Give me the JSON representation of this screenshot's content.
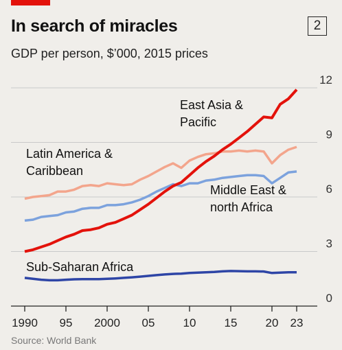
{
  "header": {
    "title": "In search of miracles",
    "chart_number": "2",
    "subtitle": "GDP per person, $’000, 2015 prices"
  },
  "footer": {
    "source": "Source: World Bank"
  },
  "colors": {
    "background": "#f0eeea",
    "accent": "#e3120b",
    "east_asia": "#e3120b",
    "latin_america": "#f3a58c",
    "middle_east": "#7ca2dd",
    "sub_saharan": "#2e45a6",
    "grid": "#c9c9c9",
    "baseline": "#222222"
  },
  "chart_data": {
    "type": "line",
    "title": "In search of miracles",
    "subtitle": "GDP per person, $’000, 2015 prices",
    "x": [
      1990,
      1991,
      1992,
      1993,
      1994,
      1995,
      1996,
      1997,
      1998,
      1999,
      2000,
      2001,
      2002,
      2003,
      2004,
      2005,
      2006,
      2007,
      2008,
      2009,
      2010,
      2011,
      2012,
      2013,
      2014,
      2015,
      2016,
      2017,
      2018,
      2019,
      2020,
      2021,
      2022,
      2023
    ],
    "xlim": [
      1990,
      2024
    ],
    "ylim": [
      0,
      12
    ],
    "y_ticks": [
      {
        "value": 0,
        "label": "0"
      },
      {
        "value": 3,
        "label": "3"
      },
      {
        "value": 6,
        "label": "6"
      },
      {
        "value": 9,
        "label": "9"
      },
      {
        "value": 12,
        "label": "12"
      }
    ],
    "x_ticks": [
      {
        "value": 1990,
        "label": "1990"
      },
      {
        "value": 1995,
        "label": "95"
      },
      {
        "value": 2000,
        "label": "2000"
      },
      {
        "value": 2005,
        "label": "05"
      },
      {
        "value": 2010,
        "label": "10"
      },
      {
        "value": 2015,
        "label": "15"
      },
      {
        "value": 2020,
        "label": "20"
      },
      {
        "value": 2023,
        "label": "23"
      }
    ],
    "grid": true,
    "series": [
      {
        "name": "Latin America & Caribbean",
        "label_lines": [
          "Latin America &",
          "Caribbean"
        ],
        "color_key": "latin_america",
        "values": [
          5.9,
          6.0,
          6.05,
          6.1,
          6.3,
          6.3,
          6.4,
          6.6,
          6.65,
          6.6,
          6.75,
          6.7,
          6.65,
          6.7,
          6.95,
          7.15,
          7.4,
          7.65,
          7.85,
          7.6,
          8.0,
          8.2,
          8.35,
          8.4,
          8.5,
          8.5,
          8.55,
          8.5,
          8.55,
          8.5,
          7.85,
          8.3,
          8.6,
          8.75
        ]
      },
      {
        "name": "East Asia & Pacific",
        "label_lines": [
          "East Asia &",
          "Pacific"
        ],
        "color_key": "east_asia",
        "values": [
          3.0,
          3.1,
          3.25,
          3.4,
          3.6,
          3.8,
          3.95,
          4.15,
          4.2,
          4.3,
          4.5,
          4.6,
          4.8,
          5.0,
          5.3,
          5.6,
          5.95,
          6.3,
          6.6,
          6.8,
          7.2,
          7.6,
          7.95,
          8.25,
          8.6,
          8.9,
          9.25,
          9.6,
          10.0,
          10.4,
          10.35,
          11.1,
          11.4,
          11.9
        ]
      },
      {
        "name": "Middle East & north Africa",
        "label_lines": [
          "Middle East &",
          "north Africa"
        ],
        "color_key": "middle_east",
        "values": [
          4.7,
          4.75,
          4.9,
          4.95,
          5.0,
          5.15,
          5.2,
          5.35,
          5.4,
          5.4,
          5.55,
          5.55,
          5.6,
          5.7,
          5.85,
          6.05,
          6.3,
          6.5,
          6.7,
          6.6,
          6.75,
          6.75,
          6.9,
          6.95,
          7.05,
          7.1,
          7.15,
          7.2,
          7.2,
          7.15,
          6.75,
          7.05,
          7.35,
          7.4
        ]
      },
      {
        "name": "Sub-Saharan Africa",
        "label_lines": [
          "Sub-Saharan Africa"
        ],
        "color_key": "sub_saharan",
        "values": [
          1.55,
          1.5,
          1.45,
          1.42,
          1.42,
          1.45,
          1.47,
          1.48,
          1.48,
          1.48,
          1.5,
          1.52,
          1.55,
          1.58,
          1.62,
          1.66,
          1.7,
          1.74,
          1.77,
          1.78,
          1.82,
          1.84,
          1.86,
          1.88,
          1.91,
          1.93,
          1.92,
          1.91,
          1.91,
          1.9,
          1.82,
          1.84,
          1.86,
          1.86
        ]
      }
    ]
  }
}
